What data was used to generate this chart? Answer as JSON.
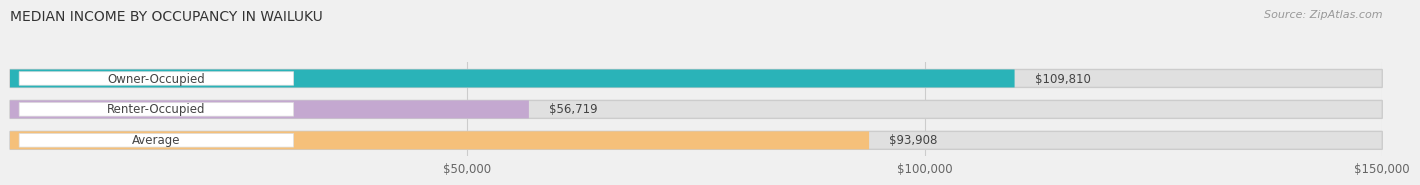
{
  "title": "MEDIAN INCOME BY OCCUPANCY IN WAILUKU",
  "source_text": "Source: ZipAtlas.com",
  "categories": [
    "Owner-Occupied",
    "Renter-Occupied",
    "Average"
  ],
  "values": [
    109810,
    56719,
    93908
  ],
  "bar_colors": [
    "#2ab3b8",
    "#c4a8d0",
    "#f5c07a"
  ],
  "bar_labels": [
    "$109,810",
    "$56,719",
    "$93,908"
  ],
  "xlim": [
    0,
    150000
  ],
  "xticks": [
    0,
    50000,
    100000,
    150000
  ],
  "xticklabels": [
    "",
    "$50,000",
    "$100,000",
    "$150,000"
  ],
  "background_color": "#f0f0f0",
  "bar_bg_color": "#e0e0e0",
  "label_bg_color": "#ffffff",
  "title_fontsize": 10,
  "source_fontsize": 8,
  "label_fontsize": 8.5,
  "tick_fontsize": 8.5
}
